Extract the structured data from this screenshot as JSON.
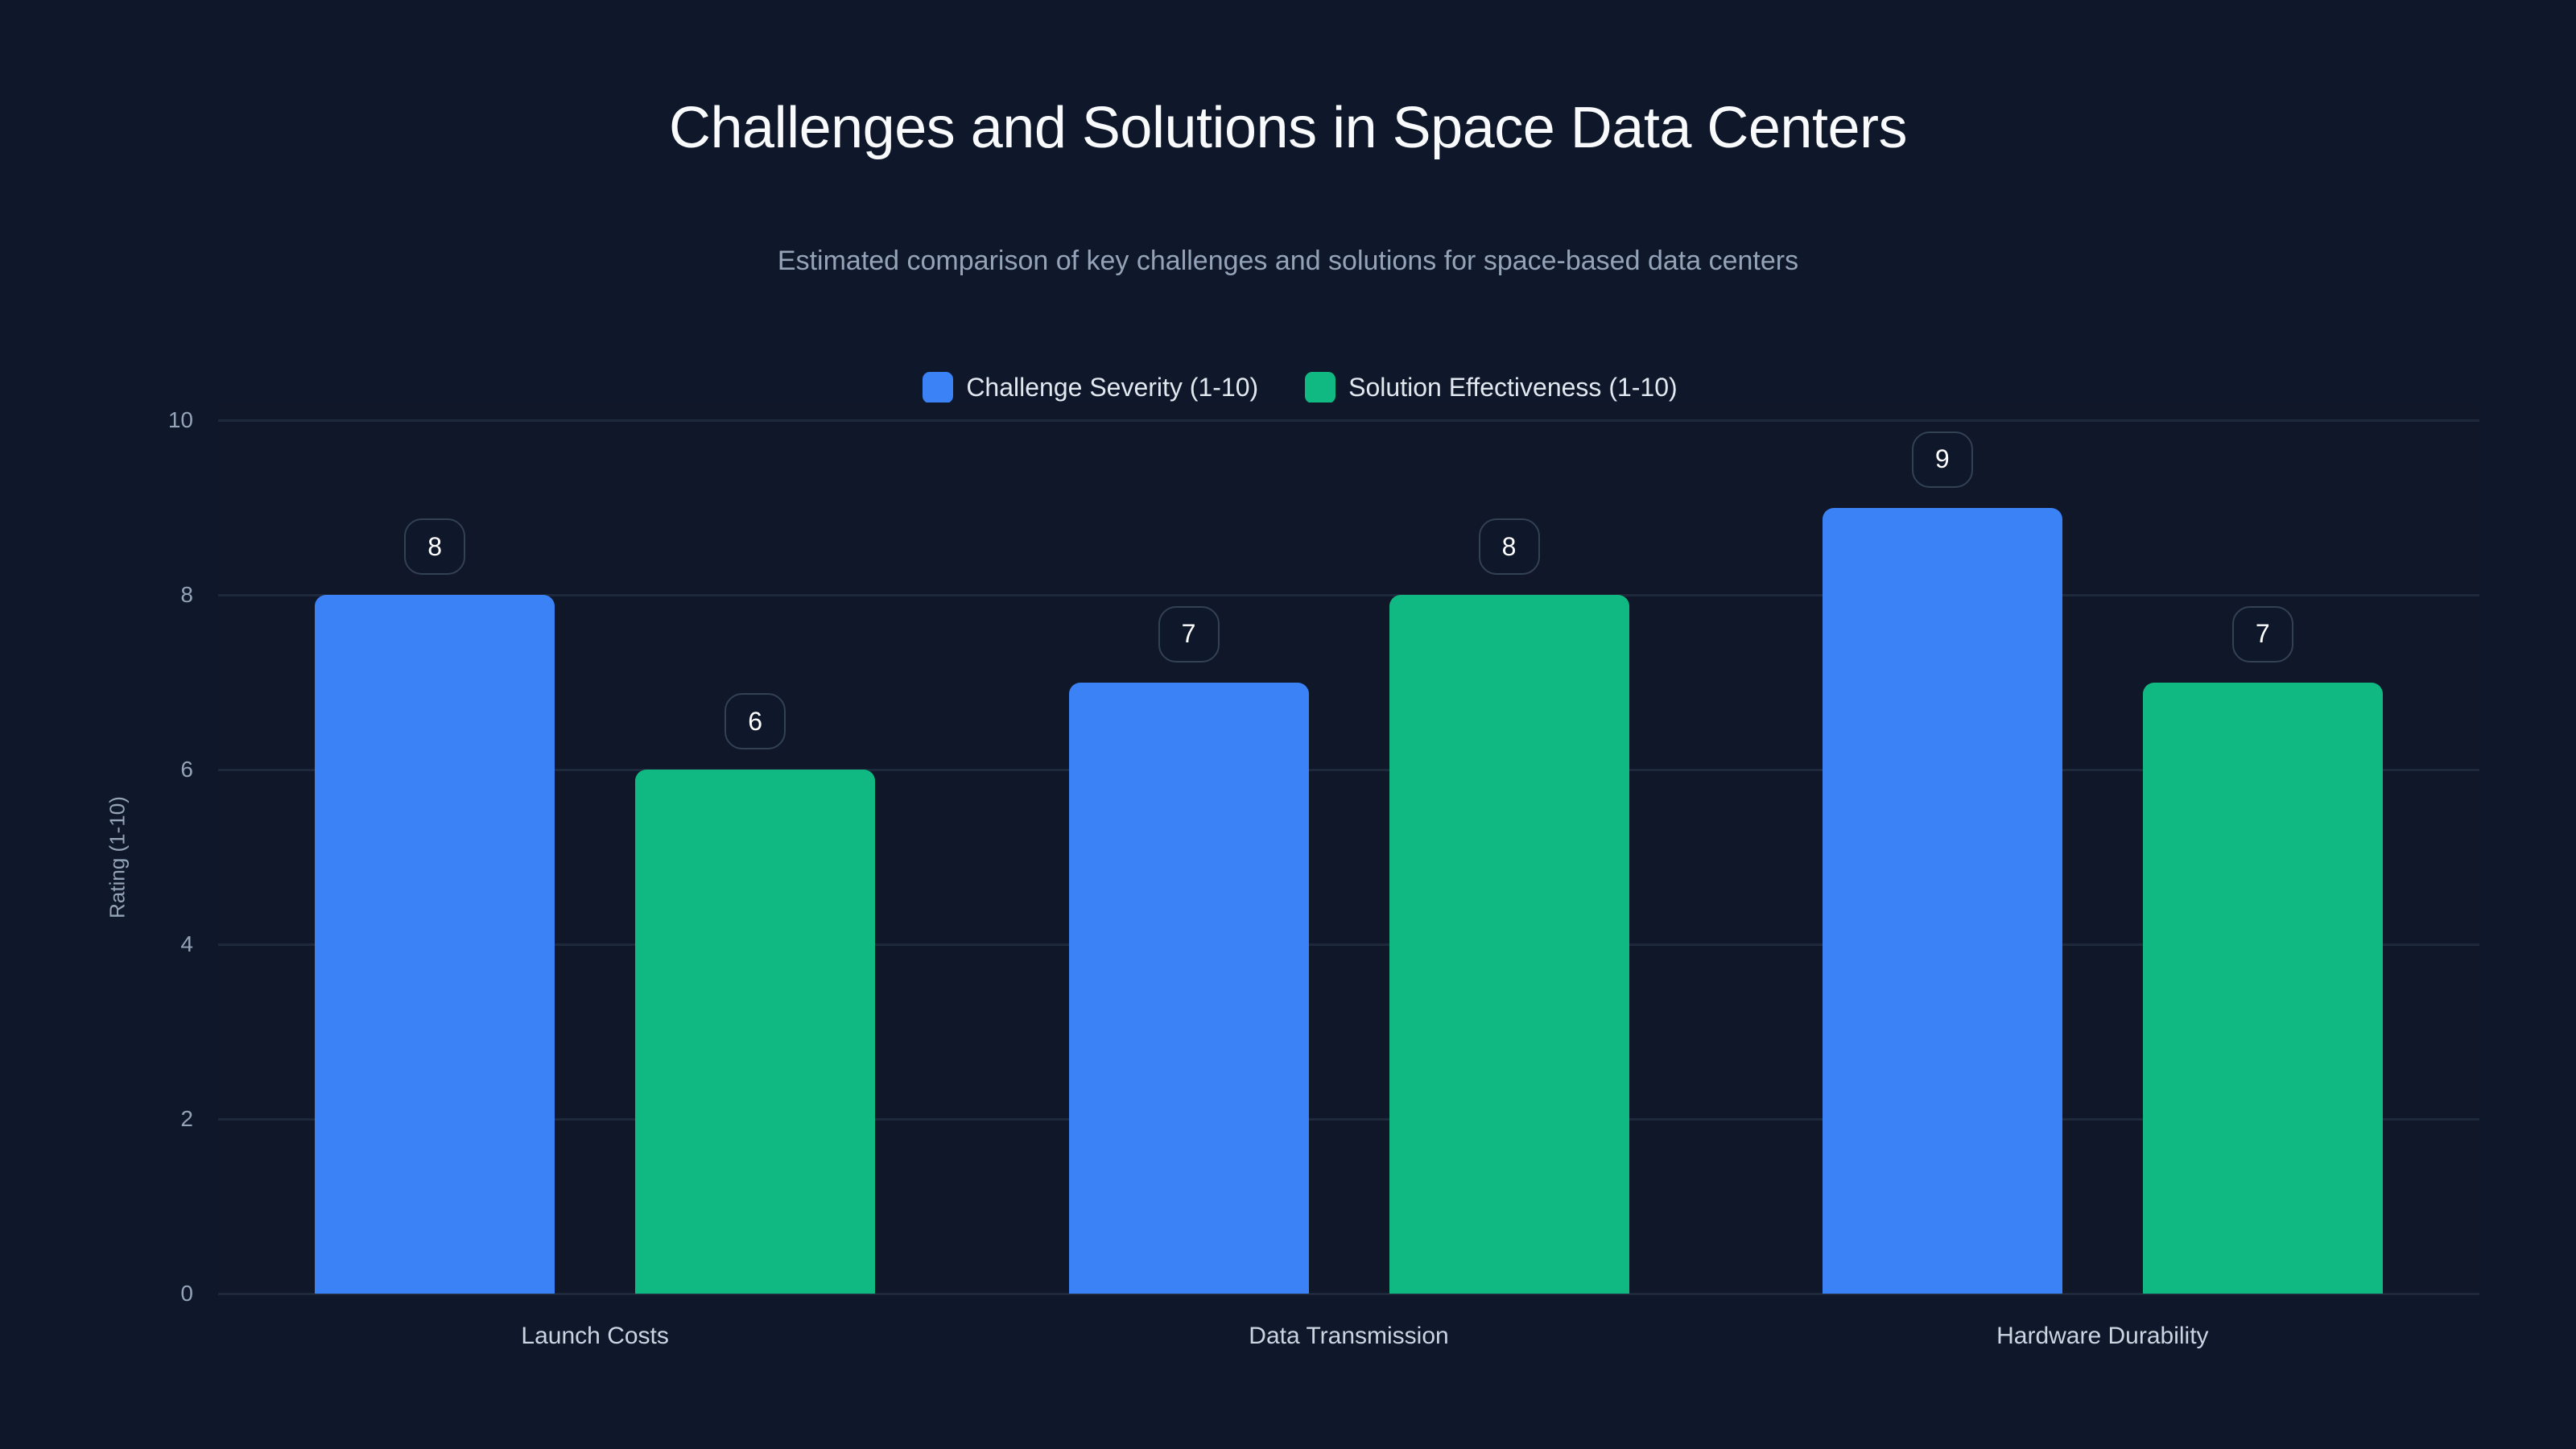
{
  "header": {
    "title": "Challenges and Solutions in Space Data Centers",
    "subtitle": "Estimated comparison of key challenges and solutions for space-based data centers"
  },
  "legend": [
    {
      "label": "Challenge Severity (1-10)",
      "color": "#3b82f6"
    },
    {
      "label": "Solution Effectiveness (1-10)",
      "color": "#10b981"
    }
  ],
  "axes": {
    "y_label": "Rating (1-10)",
    "y_ticks": [
      "0",
      "2",
      "4",
      "6",
      "8",
      "10"
    ],
    "x_ticks": [
      "Launch Costs",
      "Data Transmission",
      "Hardware Durability"
    ]
  },
  "chart_data": {
    "type": "bar",
    "title": "Challenges and Solutions in Space Data Centers",
    "subtitle": "Estimated comparison of key challenges and solutions for space-based data centers",
    "categories": [
      "Launch Costs",
      "Data Transmission",
      "Hardware Durability"
    ],
    "series": [
      {
        "name": "Challenge Severity (1-10)",
        "color": "#3b82f6",
        "values": [
          8,
          7,
          9
        ]
      },
      {
        "name": "Solution Effectiveness (1-10)",
        "color": "#10b981",
        "values": [
          6,
          8,
          7
        ]
      }
    ],
    "xlabel": "",
    "ylabel": "Rating (1-10)",
    "ylim": [
      0,
      10
    ],
    "yticks": [
      0,
      2,
      4,
      6,
      8,
      10
    ],
    "grid": true,
    "legend_position": "top",
    "data_labels": true
  }
}
